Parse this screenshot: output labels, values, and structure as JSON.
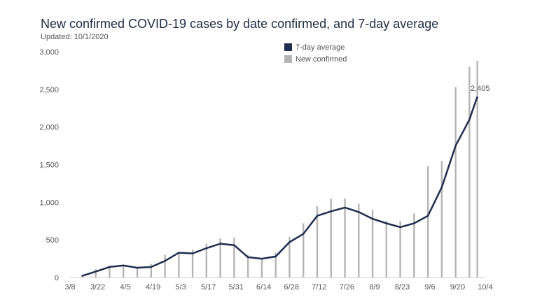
{
  "chart_data": {
    "type": "bar",
    "title": "New confirmed COVID-19 cases by date confirmed, and 7-day average",
    "subtitle": "Updated: 10/1/2020",
    "x_start": "2020-03-08",
    "x_end": "2020-10-04",
    "x_tick_labels": [
      "3/8",
      "3/22",
      "4/5",
      "4/19",
      "5/3",
      "5/17",
      "5/31",
      "6/14",
      "6/28",
      "7/12",
      "7/26",
      "8/9",
      "8/23",
      "9/6",
      "9/20",
      "10/4"
    ],
    "y_tick_labels": [
      "0",
      "500",
      "1,000",
      "1,500",
      "2,000",
      "2,500",
      "3,000"
    ],
    "ylim": [
      0,
      3000
    ],
    "legend": {
      "position": "top-center",
      "items": [
        "7-day average",
        "New confirmed"
      ]
    },
    "end_label": "2,405",
    "colors": {
      "average": "#1f2d4f",
      "bars": "#b4b4b4"
    },
    "series": [
      {
        "name": "New confirmed",
        "x": [
          "2020-03-14",
          "2020-03-21",
          "2020-03-28",
          "2020-04-04",
          "2020-04-11",
          "2020-04-18",
          "2020-04-25",
          "2020-05-02",
          "2020-05-09",
          "2020-05-16",
          "2020-05-23",
          "2020-05-30",
          "2020-06-06",
          "2020-06-13",
          "2020-06-20",
          "2020-06-27",
          "2020-07-04",
          "2020-07-11",
          "2020-07-18",
          "2020-07-25",
          "2020-08-01",
          "2020-08-08",
          "2020-08-15",
          "2020-08-22",
          "2020-08-29",
          "2020-09-05",
          "2020-09-12",
          "2020-09-19",
          "2020-09-26",
          "2020-09-30"
        ],
        "values": [
          40,
          110,
          160,
          170,
          130,
          180,
          300,
          320,
          370,
          450,
          520,
          530,
          300,
          260,
          330,
          540,
          720,
          950,
          1050,
          1050,
          980,
          900,
          750,
          750,
          850,
          1480,
          1550,
          2530,
          2800,
          2880
        ]
      },
      {
        "name": "7-day average",
        "x": [
          "2020-03-14",
          "2020-03-21",
          "2020-03-28",
          "2020-04-04",
          "2020-04-11",
          "2020-04-18",
          "2020-04-25",
          "2020-05-02",
          "2020-05-09",
          "2020-05-16",
          "2020-05-23",
          "2020-05-30",
          "2020-06-06",
          "2020-06-13",
          "2020-06-20",
          "2020-06-27",
          "2020-07-04",
          "2020-07-11",
          "2020-07-18",
          "2020-07-25",
          "2020-08-01",
          "2020-08-08",
          "2020-08-15",
          "2020-08-22",
          "2020-08-29",
          "2020-09-05",
          "2020-09-12",
          "2020-09-19",
          "2020-09-26",
          "2020-09-30"
        ],
        "values": [
          20,
          80,
          140,
          160,
          130,
          140,
          220,
          330,
          320,
          390,
          450,
          430,
          270,
          250,
          280,
          470,
          580,
          820,
          880,
          930,
          870,
          780,
          720,
          670,
          720,
          820,
          1200,
          1750,
          2100,
          2405
        ]
      }
    ]
  }
}
